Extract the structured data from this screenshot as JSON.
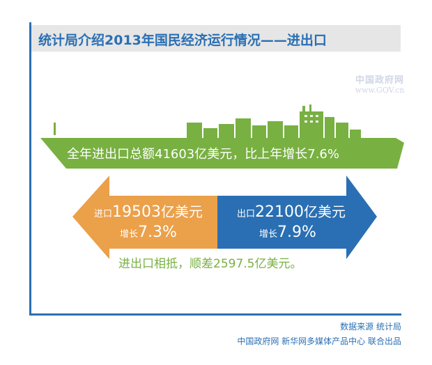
{
  "title": "统计局介绍2013年国民经济运行情况——进出口",
  "watermark": {
    "cn": "中国政府网",
    "en": "www.GOV.cn"
  },
  "ship": {
    "text": "全年进出口总额41603亿美元，比上年增长7.6%"
  },
  "import": {
    "prefix": "进口",
    "amount": "19503",
    "unit": "亿美元",
    "growth_label": "增长",
    "growth": "7.3%"
  },
  "export": {
    "prefix": "出口",
    "amount": "22100",
    "unit": "亿美元",
    "growth_label": "增长",
    "growth": "7.9%"
  },
  "surplus": "进出口相抵，顺差2597.5亿美元。",
  "footer": {
    "source": "数据来源 统计局",
    "credits": "中国政府网 新华网多媒体产品中心 联合出品"
  },
  "colors": {
    "blue": "#2a6fb3",
    "green": "#78b042",
    "orange": "#eba04a",
    "grey": "#e6e6e6"
  }
}
